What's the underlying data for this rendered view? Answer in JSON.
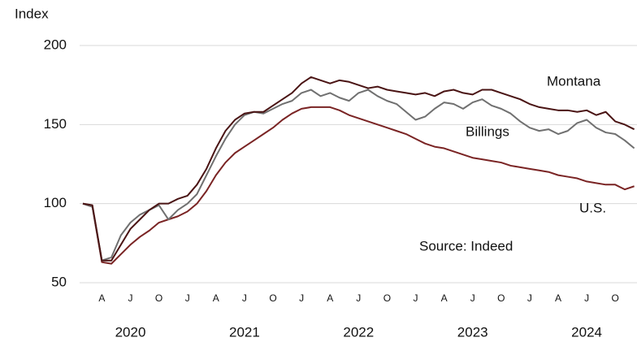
{
  "chart_data": {
    "type": "line",
    "y_label": "Index",
    "annotations": [
      "Source: Indeed"
    ],
    "categories": [
      "2020-02",
      "2020-03",
      "2020-04",
      "2020-05",
      "2020-06",
      "2020-07",
      "2020-08",
      "2020-09",
      "2020-10",
      "2020-11",
      "2020-12",
      "2021-01",
      "2021-02",
      "2021-03",
      "2021-04",
      "2021-05",
      "2021-06",
      "2021-07",
      "2021-08",
      "2021-09",
      "2021-10",
      "2021-11",
      "2021-12",
      "2022-01",
      "2022-02",
      "2022-03",
      "2022-04",
      "2022-05",
      "2022-06",
      "2022-07",
      "2022-08",
      "2022-09",
      "2022-10",
      "2022-11",
      "2022-12",
      "2023-01",
      "2023-02",
      "2023-03",
      "2023-04",
      "2023-05",
      "2023-06",
      "2023-07",
      "2023-08",
      "2023-09",
      "2023-10",
      "2023-11",
      "2023-12",
      "2024-01",
      "2024-02",
      "2024-03",
      "2024-04",
      "2024-05",
      "2024-06",
      "2024-07",
      "2024-08",
      "2024-09",
      "2024-10",
      "2024-11",
      "2024-12"
    ],
    "series": [
      {
        "name": "Montana",
        "color": "#4a1414",
        "values": [
          100,
          99,
          64,
          64,
          74,
          84,
          90,
          96,
          100,
          100,
          103,
          105,
          112,
          122,
          135,
          146,
          153,
          157,
          158,
          158,
          162,
          166,
          170,
          176,
          180,
          178,
          176,
          178,
          177,
          175,
          173,
          174,
          172,
          171,
          170,
          169,
          170,
          168,
          171,
          172,
          170,
          169,
          172,
          172,
          170,
          168,
          166,
          163,
          161,
          160,
          159,
          159,
          158,
          159,
          156,
          158,
          152,
          150,
          147
        ]
      },
      {
        "name": "Billings",
        "color": "#707070",
        "values": [
          100,
          98,
          64,
          66,
          80,
          88,
          93,
          96,
          99,
          90,
          96,
          100,
          106,
          118,
          130,
          141,
          150,
          156,
          158,
          157,
          160,
          163,
          165,
          170,
          172,
          168,
          170,
          167,
          165,
          170,
          172,
          168,
          165,
          163,
          158,
          153,
          155,
          160,
          164,
          163,
          160,
          164,
          166,
          162,
          160,
          157,
          152,
          148,
          146,
          147,
          144,
          146,
          151,
          153,
          148,
          145,
          144,
          140,
          135
        ]
      },
      {
        "name": "U.S.",
        "color": "#7a2424",
        "values": [
          100,
          98,
          63,
          62,
          68,
          74,
          79,
          83,
          88,
          90,
          92,
          95,
          100,
          108,
          118,
          126,
          132,
          136,
          140,
          144,
          148,
          153,
          157,
          160,
          161,
          161,
          161,
          159,
          156,
          154,
          152,
          150,
          148,
          146,
          144,
          141,
          138,
          136,
          135,
          133,
          131,
          129,
          128,
          127,
          126,
          124,
          123,
          122,
          121,
          120,
          118,
          117,
          116,
          114,
          113,
          112,
          112,
          109,
          111
        ]
      }
    ],
    "ylim": [
      50,
      200
    ],
    "yticks": [
      50,
      100,
      150,
      200
    ],
    "grid": true,
    "xticks": [
      {
        "value": "2020-04",
        "label": "A"
      },
      {
        "value": "2020-07",
        "label": "J"
      },
      {
        "value": "2020-10",
        "label": "O"
      },
      {
        "value": "2021-01",
        "label": "J"
      },
      {
        "value": "2021-04",
        "label": "A"
      },
      {
        "value": "2021-07",
        "label": "J"
      },
      {
        "value": "2021-10",
        "label": "O"
      },
      {
        "value": "2022-01",
        "label": "J"
      },
      {
        "value": "2022-04",
        "label": "A"
      },
      {
        "value": "2022-07",
        "label": "J"
      },
      {
        "value": "2022-10",
        "label": "O"
      },
      {
        "value": "2023-01",
        "label": "J"
      },
      {
        "value": "2023-04",
        "label": "A"
      },
      {
        "value": "2023-07",
        "label": "J"
      },
      {
        "value": "2023-10",
        "label": "O"
      },
      {
        "value": "2024-01",
        "label": "J"
      },
      {
        "value": "2024-04",
        "label": "A"
      },
      {
        "value": "2024-07",
        "label": "J"
      },
      {
        "value": "2024-10",
        "label": "O"
      }
    ],
    "year_labels": [
      {
        "value": "2020-07",
        "label": "2020"
      },
      {
        "value": "2021-07",
        "label": "2021"
      },
      {
        "value": "2022-07",
        "label": "2022"
      },
      {
        "value": "2023-07",
        "label": "2023"
      },
      {
        "value": "2024-07",
        "label": "2024"
      }
    ]
  }
}
